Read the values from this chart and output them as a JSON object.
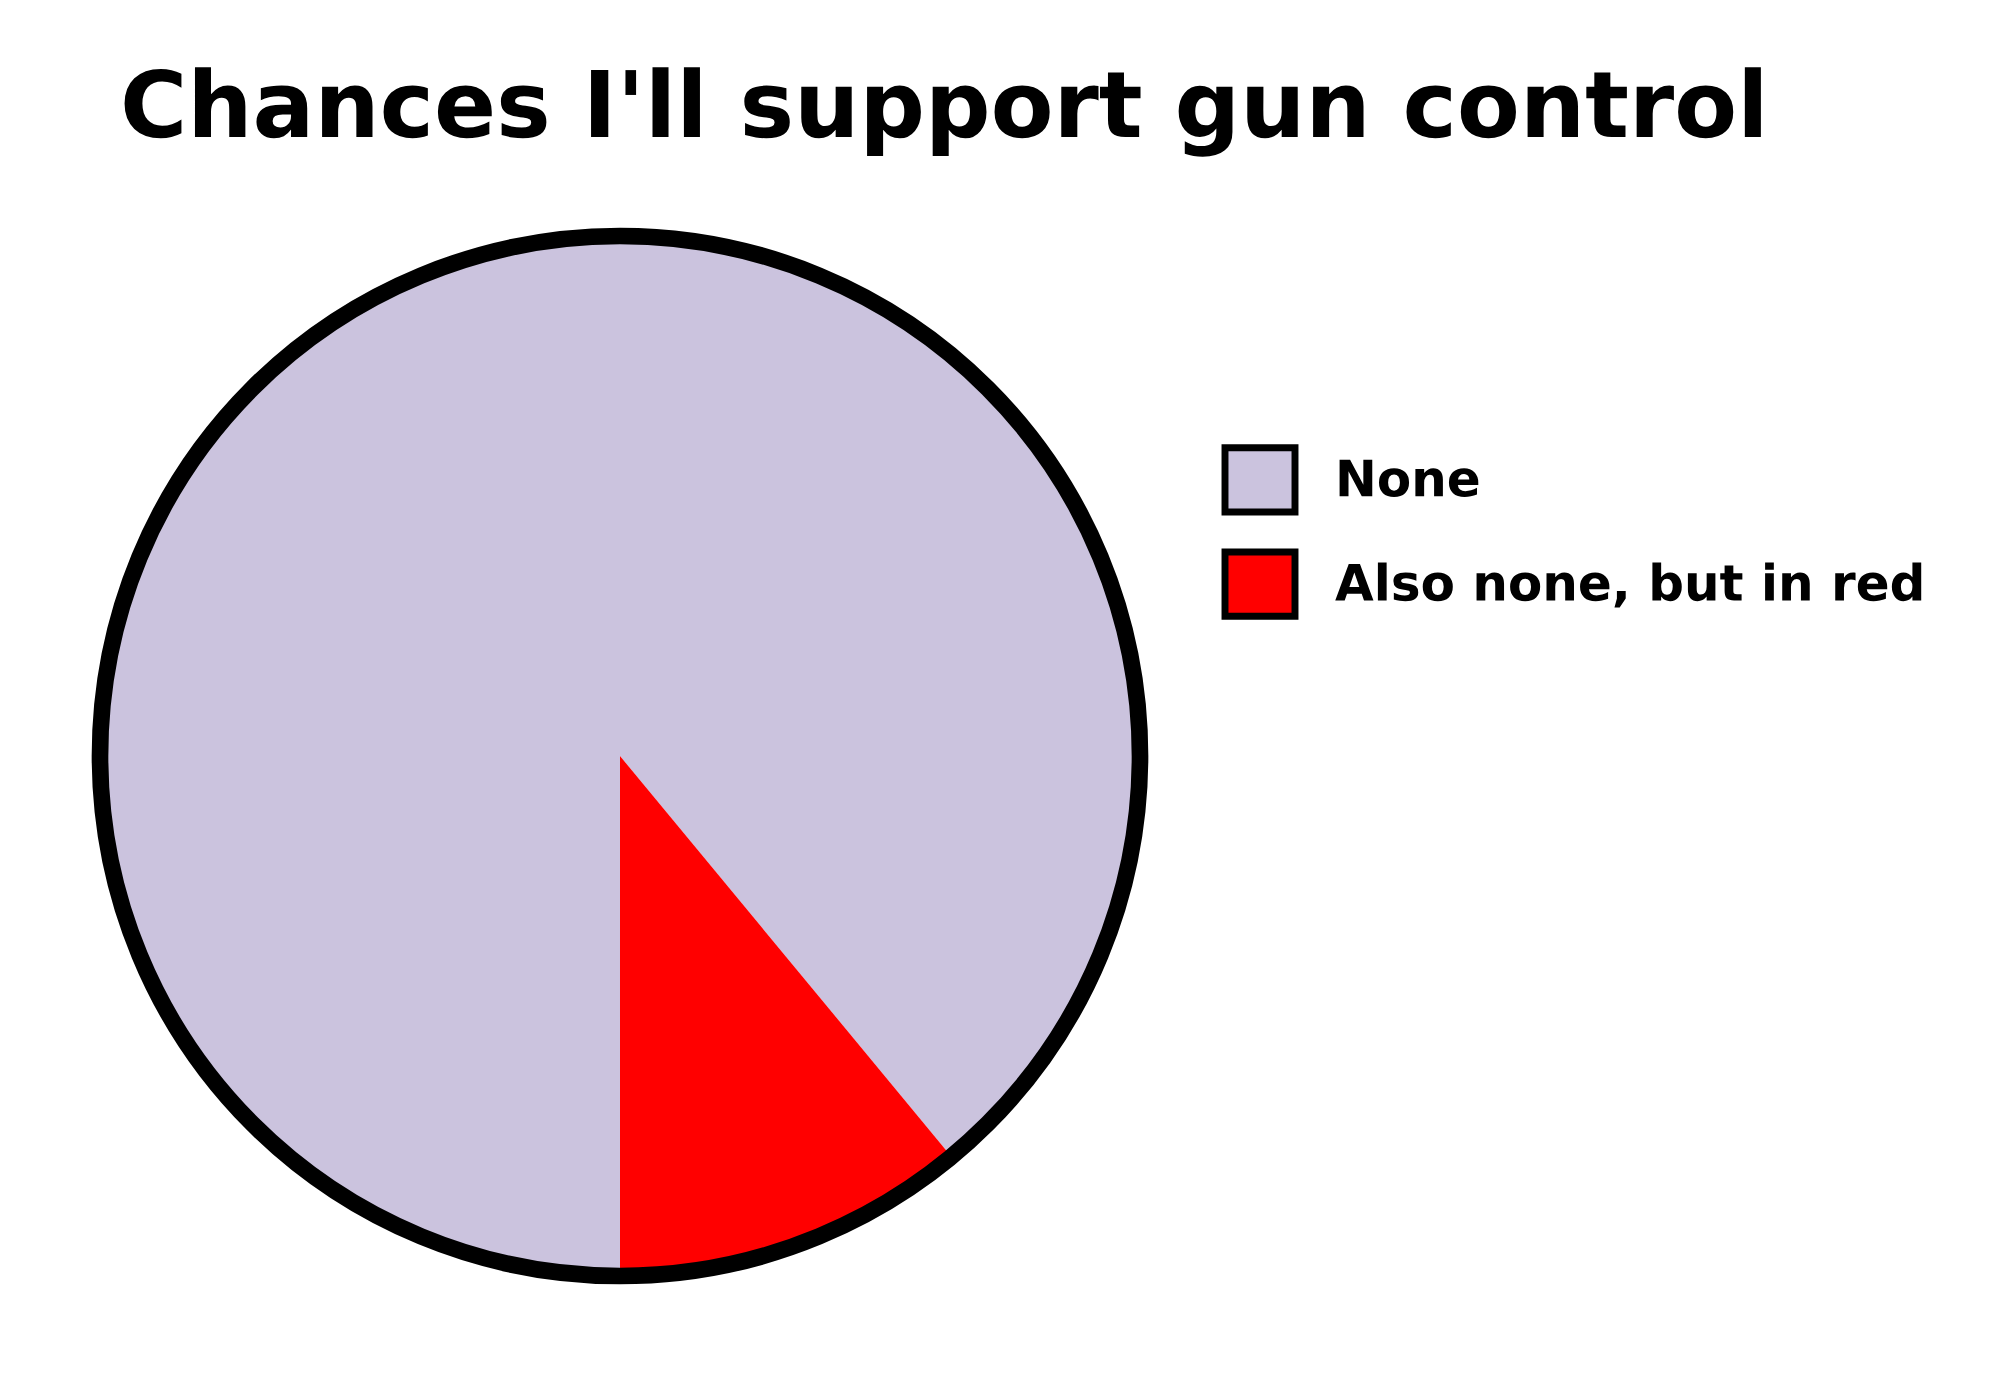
{
  "chart_data": {
    "type": "pie",
    "title": "Chances I'll support gun control",
    "categories": [
      "None",
      "Also none, but in red"
    ],
    "values": [
      89,
      11
    ],
    "colors": [
      "#cbc3de",
      "#ff0000"
    ],
    "legend": "right"
  }
}
